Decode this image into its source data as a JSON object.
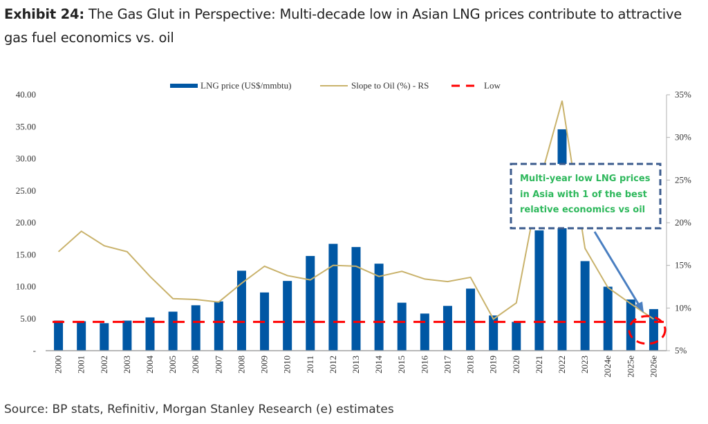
{
  "header": {
    "exhibit_label": "Exhibit 24:",
    "title": "The Gas Glut in Perspective: Multi-decade low in Asian LNG prices contribute to attractive gas fuel economics vs. oil"
  },
  "footer": {
    "source": "Source: BP stats, Refinitiv, Morgan Stanley Research (e) estimates"
  },
  "chart_data": {
    "type": "bar",
    "title": "",
    "xlabel": "",
    "ylabel": "",
    "categories": [
      "2000",
      "2001",
      "2002",
      "2003",
      "2004",
      "2005",
      "2006",
      "2007",
      "2008",
      "2009",
      "2010",
      "2011",
      "2012",
      "2013",
      "2014",
      "2015",
      "2016",
      "2017",
      "2018",
      "2019",
      "2020",
      "2021",
      "2022",
      "2023",
      "2024e",
      "2025e",
      "2026e"
    ],
    "series": [
      {
        "name": "LNG price (US$/mmbtu)",
        "type": "bar",
        "axis": "left",
        "color": "#0057a4",
        "values": [
          4.7,
          4.6,
          4.3,
          4.7,
          5.2,
          6.1,
          7.1,
          7.7,
          12.5,
          9.1,
          10.9,
          14.8,
          16.7,
          16.2,
          13.6,
          7.5,
          5.8,
          7.0,
          9.7,
          5.5,
          4.5,
          18.8,
          34.6,
          14.0,
          10.0,
          8.0,
          6.5
        ]
      },
      {
        "name": "Slope to Oil (%) - RS",
        "type": "line",
        "axis": "right",
        "color": "#c9b26b",
        "values": [
          16.6,
          19.0,
          17.3,
          16.6,
          13.7,
          11.1,
          11.0,
          10.7,
          12.9,
          14.9,
          13.8,
          13.3,
          15.0,
          14.9,
          13.7,
          14.3,
          13.4,
          13.1,
          13.6,
          8.7,
          10.6,
          24.6,
          34.3,
          17.0,
          12.4,
          10.5,
          8.7
        ]
      },
      {
        "name": "Low",
        "type": "hline",
        "axis": "left",
        "color": "#ff0000",
        "value": 4.5
      }
    ],
    "left_axis": {
      "ylim": [
        0,
        40
      ],
      "ticks": [
        0,
        5,
        10,
        15,
        20,
        25,
        30,
        35,
        40
      ],
      "tick_labels": [
        "-",
        "5.00",
        "10.00",
        "15.00",
        "20.00",
        "25.00",
        "30.00",
        "35.00",
        "40.00"
      ]
    },
    "right_axis": {
      "ylim": [
        5,
        35
      ],
      "ticks": [
        5,
        10,
        15,
        20,
        25,
        30,
        35
      ],
      "tick_labels": [
        "5%",
        "10%",
        "15%",
        "20%",
        "25%",
        "30%",
        "35%"
      ]
    },
    "legend": {
      "placement": "top-center",
      "entries": [
        "LNG price (US$/mmbtu)",
        "Slope to Oil (%) - RS",
        "Low"
      ]
    },
    "grid": false,
    "annotation": {
      "lines": [
        "Multi-year low LNG prices",
        "in Asia with 1 of the best",
        "relative economics vs oil"
      ],
      "target_category": "2026e",
      "text_color": "#2eb85c",
      "border_color": "#3a5a8c",
      "arrow_color": "#4a7fc1",
      "highlight_circle_color": "#ff0000"
    }
  }
}
